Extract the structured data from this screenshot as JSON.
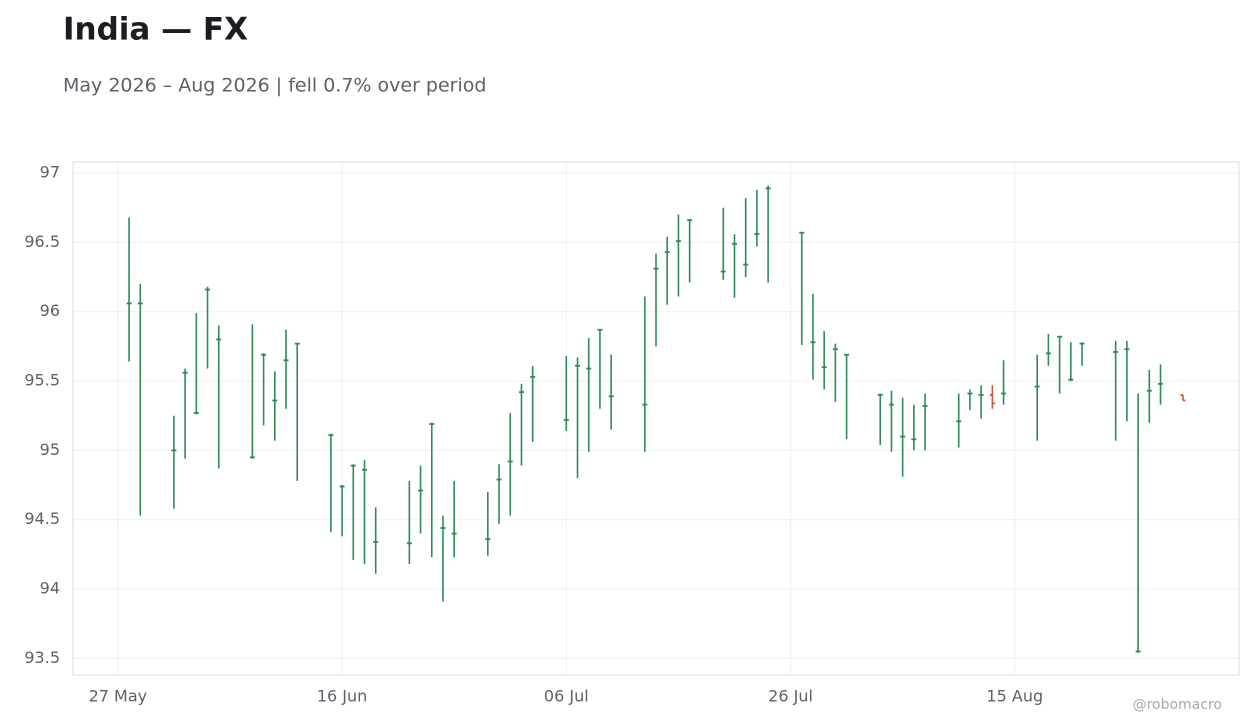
{
  "chart_data": {
    "type": "ohlc",
    "title": "India — FX",
    "subtitle": "May 2026 – Aug 2026 | fell 0.7% over period",
    "watermark": "@robomacro",
    "x": [
      "2026-05-28",
      "2026-05-29",
      "2026-06-01",
      "2026-06-02",
      "2026-06-03",
      "2026-06-04",
      "2026-06-05",
      "2026-06-08",
      "2026-06-09",
      "2026-06-10",
      "2026-06-11",
      "2026-06-12",
      "2026-06-15",
      "2026-06-16",
      "2026-06-17",
      "2026-06-18",
      "2026-06-19",
      "2026-06-22",
      "2026-06-23",
      "2026-06-24",
      "2026-06-25",
      "2026-06-26",
      "2026-06-29",
      "2026-06-30",
      "2026-07-01",
      "2026-07-02",
      "2026-07-03",
      "2026-07-06",
      "2026-07-07",
      "2026-07-08",
      "2026-07-09",
      "2026-07-10",
      "2026-07-13",
      "2026-07-14",
      "2026-07-15",
      "2026-07-16",
      "2026-07-17",
      "2026-07-20",
      "2026-07-21",
      "2026-07-22",
      "2026-07-23",
      "2026-07-24",
      "2026-07-27",
      "2026-07-28",
      "2026-07-29",
      "2026-07-30",
      "2026-07-31",
      "2026-08-03",
      "2026-08-04",
      "2026-08-05",
      "2026-08-06",
      "2026-08-07",
      "2026-08-10",
      "2026-08-11",
      "2026-08-12",
      "2026-08-13",
      "2026-08-14",
      "2026-08-17",
      "2026-08-18",
      "2026-08-19",
      "2026-08-20",
      "2026-08-21",
      "2026-08-24",
      "2026-08-25",
      "2026-08-26",
      "2026-08-27",
      "2026-08-28",
      "2026-08-30"
    ],
    "open": [
      96.06,
      96.06,
      95.0,
      95.56,
      95.27,
      96.16,
      95.8,
      94.95,
      95.69,
      95.36,
      95.65,
      95.77,
      95.11,
      94.74,
      94.89,
      94.86,
      94.34,
      94.33,
      94.71,
      95.19,
      94.44,
      94.4,
      94.36,
      94.79,
      94.92,
      95.42,
      95.53,
      95.22,
      95.61,
      95.59,
      95.87,
      95.39,
      95.33,
      96.31,
      96.43,
      96.51,
      96.66,
      96.29,
      96.49,
      96.34,
      96.56,
      96.89,
      96.57,
      95.78,
      95.6,
      95.73,
      95.69,
      95.4,
      95.33,
      95.1,
      95.08,
      95.32,
      95.21,
      95.41,
      95.4,
      95.4,
      95.41,
      95.46,
      95.7,
      95.82,
      95.51,
      95.77,
      95.71,
      95.73,
      93.55,
      95.43,
      95.48,
      95.4
    ],
    "high": [
      96.68,
      96.2,
      95.25,
      95.59,
      95.99,
      96.18,
      95.9,
      95.91,
      95.7,
      95.57,
      95.87,
      95.77,
      95.12,
      94.75,
      94.9,
      94.93,
      94.59,
      94.78,
      94.89,
      95.2,
      94.53,
      94.78,
      94.7,
      94.9,
      95.27,
      95.48,
      95.61,
      95.68,
      95.67,
      95.81,
      95.87,
      95.69,
      96.11,
      96.42,
      96.54,
      96.7,
      96.67,
      96.75,
      96.56,
      96.82,
      96.88,
      96.91,
      96.57,
      96.13,
      95.86,
      95.77,
      95.69,
      95.41,
      95.43,
      95.38,
      95.33,
      95.41,
      95.41,
      95.44,
      95.47,
      95.47,
      95.65,
      95.69,
      95.84,
      95.82,
      95.78,
      95.78,
      95.79,
      95.79,
      95.41,
      95.58,
      95.62,
      95.4
    ],
    "low": [
      95.64,
      94.53,
      94.58,
      94.94,
      95.26,
      95.59,
      94.87,
      94.94,
      95.18,
      95.07,
      95.3,
      94.78,
      94.41,
      94.38,
      94.21,
      94.18,
      94.11,
      94.18,
      94.4,
      94.23,
      93.91,
      94.23,
      94.24,
      94.47,
      94.53,
      94.89,
      95.06,
      95.14,
      94.8,
      94.99,
      95.3,
      95.15,
      94.99,
      95.75,
      96.05,
      96.11,
      96.21,
      96.23,
      96.1,
      96.25,
      96.47,
      96.21,
      95.76,
      95.51,
      95.44,
      95.35,
      95.08,
      95.04,
      94.99,
      94.81,
      95.0,
      95.0,
      95.02,
      95.29,
      95.23,
      95.3,
      95.33,
      95.07,
      95.61,
      95.41,
      95.5,
      95.61,
      95.07,
      95.21,
      93.54,
      95.2,
      95.33,
      95.36
    ],
    "close": [
      96.06,
      96.06,
      95.0,
      95.56,
      95.27,
      96.16,
      95.8,
      94.95,
      95.69,
      95.36,
      95.65,
      95.77,
      95.11,
      94.74,
      94.89,
      94.86,
      94.34,
      94.33,
      94.71,
      95.19,
      94.44,
      94.4,
      94.36,
      94.79,
      94.92,
      95.42,
      95.53,
      95.22,
      95.61,
      95.59,
      95.87,
      95.39,
      95.33,
      96.31,
      96.43,
      96.51,
      96.66,
      96.29,
      96.49,
      96.34,
      96.56,
      96.89,
      96.57,
      95.78,
      95.6,
      95.73,
      95.69,
      95.4,
      95.33,
      95.1,
      95.08,
      95.32,
      95.21,
      95.41,
      95.4,
      95.34,
      95.41,
      95.46,
      95.7,
      95.82,
      95.51,
      95.77,
      95.71,
      95.73,
      93.55,
      95.43,
      95.48,
      95.36
    ],
    "up_color": "#2e8b57",
    "down_color": "#d2553a",
    "xlim": [
      "2026-05-23",
      "2026-09-04"
    ],
    "xticks": [
      {
        "value": "2026-05-27",
        "label": "27 May"
      },
      {
        "value": "2026-06-16",
        "label": "16 Jun"
      },
      {
        "value": "2026-07-06",
        "label": "06 Jul"
      },
      {
        "value": "2026-07-26",
        "label": "26 Jul"
      },
      {
        "value": "2026-08-15",
        "label": "15 Aug"
      }
    ],
    "ylim": [
      93.38,
      97.08
    ],
    "yticks": [
      93.5,
      94,
      94.5,
      95,
      95.5,
      96,
      96.5,
      97
    ],
    "grid": true
  }
}
